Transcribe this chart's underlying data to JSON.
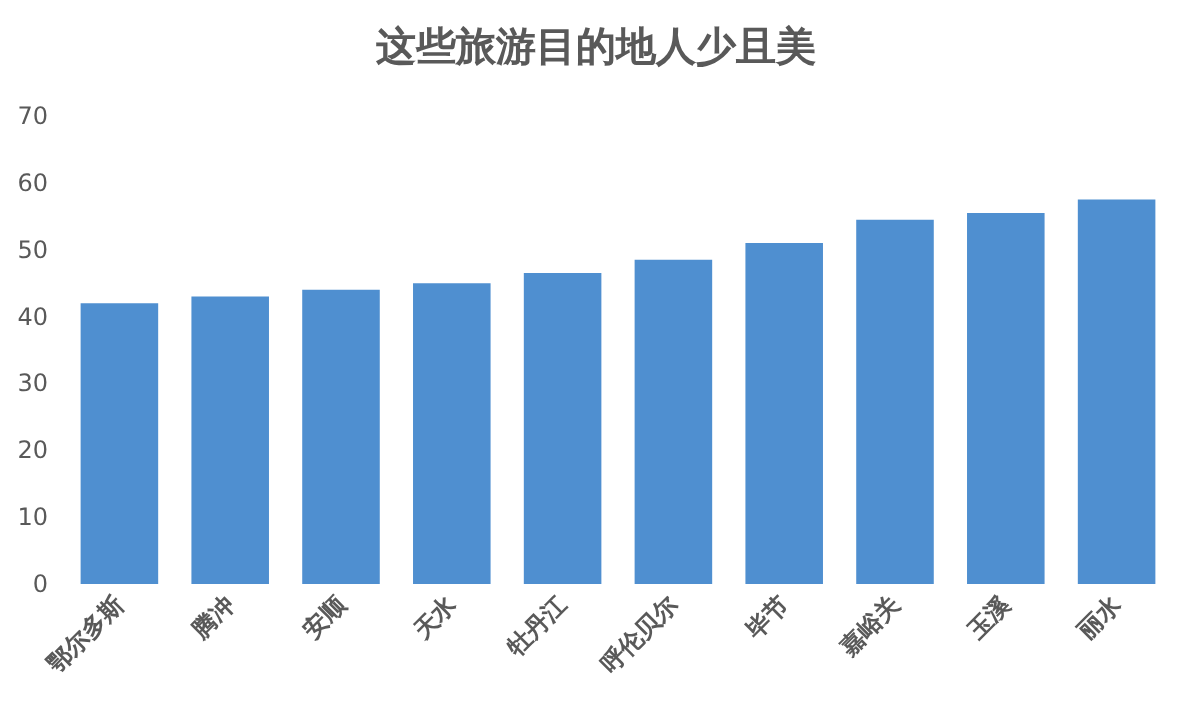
{
  "chart_data": {
    "type": "bar",
    "title": "这些旅游目的地人少且美",
    "categories": [
      "鄂尔多斯",
      "腾冲",
      "安顺",
      "天水",
      "牡丹江",
      "呼伦贝尔",
      "毕节",
      "嘉峪关",
      "玉溪",
      "丽水"
    ],
    "values": [
      42,
      43,
      44,
      45,
      46.5,
      48.5,
      51,
      54.5,
      55.5,
      57.5
    ],
    "color": "#4f8fd0",
    "ylim": [
      0,
      70
    ],
    "yticks": [
      0,
      10,
      20,
      30,
      40,
      50,
      60,
      70
    ],
    "grid": false
  }
}
